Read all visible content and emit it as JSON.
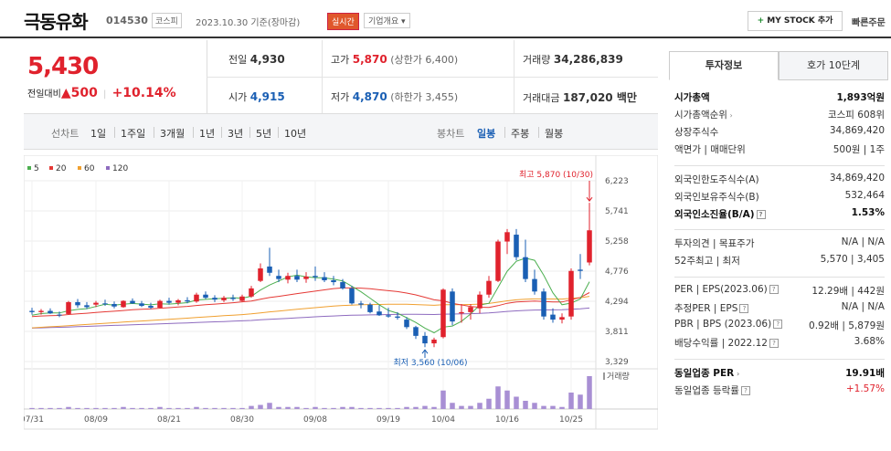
{
  "header": {
    "stock_name": "극동유화",
    "stock_code": "014530",
    "market": "코스피",
    "date_text": "2023.10.30 기준(장마감)",
    "live_badge": "실시간",
    "overview_label": "기업개요 ▾",
    "my_stock_button": "MY STOCK 추가",
    "my_stock_plus": "+",
    "quick_order": "빠른주문"
  },
  "price": {
    "current": "5,430",
    "change_label": "전일대비",
    "change_arrow": "▲",
    "change_amount": "500",
    "separator": "|",
    "change_rate": "+10.14%"
  },
  "quote": {
    "prev_close_label": "전일",
    "prev_close": "4,930",
    "high_label": "고가",
    "high": "5,870",
    "upper_limit": "(상한가 6,400)",
    "volume_label": "거래량",
    "volume": "34,286,839",
    "open_label": "시가",
    "open": "4,915",
    "low_label": "저가",
    "low": "4,870",
    "lower_limit": "(하한가 3,455)",
    "amount_label": "거래대금",
    "amount": "187,020 백만"
  },
  "period_tabs": {
    "line_chart_label": "선차트",
    "line_periods": [
      "1일",
      "1주일",
      "3개월",
      "1년",
      "3년",
      "5년",
      "10년"
    ],
    "candle_chart_label": "봉차트",
    "candle_periods": [
      "일봉",
      "주봉",
      "월봉"
    ],
    "active_candle": "일봉"
  },
  "colors": {
    "up": "#e0222d",
    "down": "#1a5fb4",
    "ma5": "#4caf50",
    "ma20": "#e53935",
    "ma60": "#f0a030",
    "ma120": "#8e6bbf",
    "volume": "#a88fd4"
  },
  "chart_data": {
    "type": "candlestick",
    "legend": [
      {
        "label": "5",
        "color": "#4caf50"
      },
      {
        "label": "20",
        "color": "#e53935"
      },
      {
        "label": "60",
        "color": "#f0a030"
      },
      {
        "label": "120",
        "color": "#8e6bbf"
      }
    ],
    "y_ticks": [
      "6,223",
      "5,741",
      "5,258",
      "4,776",
      "4,294",
      "3,811",
      "3,329"
    ],
    "ylim": [
      3329,
      6223
    ],
    "x_ticks": [
      "07/31",
      "08/09",
      "08/21",
      "08/30",
      "09/08",
      "09/19",
      "10/04",
      "10/16",
      "10/25"
    ],
    "max_annotation": "최고 5,870 (10/30)",
    "min_annotation": "최저 3,560 (10/06)",
    "volume_label": "거래량",
    "candles": [
      {
        "o": 4140,
        "h": 4190,
        "l": 4080,
        "c": 4120
      },
      {
        "o": 4120,
        "h": 4170,
        "l": 4080,
        "c": 4140
      },
      {
        "o": 4140,
        "h": 4180,
        "l": 4090,
        "c": 4100
      },
      {
        "o": 4080,
        "h": 4130,
        "l": 4040,
        "c": 4070
      },
      {
        "o": 4090,
        "h": 4300,
        "l": 4080,
        "c": 4280
      },
      {
        "o": 4280,
        "h": 4330,
        "l": 4190,
        "c": 4230
      },
      {
        "o": 4230,
        "h": 4280,
        "l": 4170,
        "c": 4200
      },
      {
        "o": 4240,
        "h": 4300,
        "l": 4200,
        "c": 4270
      },
      {
        "o": 4260,
        "h": 4320,
        "l": 4220,
        "c": 4250
      },
      {
        "o": 4250,
        "h": 4290,
        "l": 4180,
        "c": 4210
      },
      {
        "o": 4200,
        "h": 4310,
        "l": 4190,
        "c": 4300
      },
      {
        "o": 4300,
        "h": 4340,
        "l": 4250,
        "c": 4260
      },
      {
        "o": 4260,
        "h": 4300,
        "l": 4200,
        "c": 4220
      },
      {
        "o": 4220,
        "h": 4270,
        "l": 4170,
        "c": 4190
      },
      {
        "o": 4190,
        "h": 4320,
        "l": 4180,
        "c": 4300
      },
      {
        "o": 4300,
        "h": 4350,
        "l": 4240,
        "c": 4270
      },
      {
        "o": 4270,
        "h": 4330,
        "l": 4230,
        "c": 4310
      },
      {
        "o": 4310,
        "h": 4360,
        "l": 4260,
        "c": 4290
      },
      {
        "o": 4290,
        "h": 4430,
        "l": 4270,
        "c": 4400
      },
      {
        "o": 4400,
        "h": 4450,
        "l": 4330,
        "c": 4350
      },
      {
        "o": 4350,
        "h": 4390,
        "l": 4280,
        "c": 4320
      },
      {
        "o": 4310,
        "h": 4380,
        "l": 4280,
        "c": 4350
      },
      {
        "o": 4350,
        "h": 4400,
        "l": 4300,
        "c": 4330
      },
      {
        "o": 4300,
        "h": 4400,
        "l": 4290,
        "c": 4370
      },
      {
        "o": 4370,
        "h": 4540,
        "l": 4350,
        "c": 4500
      },
      {
        "o": 4620,
        "h": 4900,
        "l": 4600,
        "c": 4820
      },
      {
        "o": 4850,
        "h": 5150,
        "l": 4700,
        "c": 4750
      },
      {
        "o": 4700,
        "h": 4800,
        "l": 4600,
        "c": 4650
      },
      {
        "o": 4640,
        "h": 4750,
        "l": 4580,
        "c": 4700
      },
      {
        "o": 4700,
        "h": 4800,
        "l": 4600,
        "c": 4640
      },
      {
        "o": 4650,
        "h": 4760,
        "l": 4590,
        "c": 4690
      },
      {
        "o": 4700,
        "h": 4850,
        "l": 4620,
        "c": 4680
      },
      {
        "o": 4680,
        "h": 4760,
        "l": 4600,
        "c": 4630
      },
      {
        "o": 4630,
        "h": 4700,
        "l": 4550,
        "c": 4600
      },
      {
        "o": 4600,
        "h": 4650,
        "l": 4480,
        "c": 4500
      },
      {
        "o": 4500,
        "h": 4540,
        "l": 4240,
        "c": 4260
      },
      {
        "o": 4260,
        "h": 4300,
        "l": 4180,
        "c": 4240
      },
      {
        "o": 4240,
        "h": 4270,
        "l": 4100,
        "c": 4120
      },
      {
        "o": 4130,
        "h": 4230,
        "l": 4060,
        "c": 4070
      },
      {
        "o": 4070,
        "h": 4190,
        "l": 4030,
        "c": 4050
      },
      {
        "o": 4050,
        "h": 4120,
        "l": 4000,
        "c": 4030
      },
      {
        "o": 4000,
        "h": 4040,
        "l": 3850,
        "c": 3880
      },
      {
        "o": 3880,
        "h": 3900,
        "l": 3690,
        "c": 3740
      },
      {
        "o": 3740,
        "h": 3800,
        "l": 3560,
        "c": 3620
      },
      {
        "o": 3620,
        "h": 3710,
        "l": 3560,
        "c": 3680
      },
      {
        "o": 3720,
        "h": 4500,
        "l": 3700,
        "c": 4480
      },
      {
        "o": 4450,
        "h": 4500,
        "l": 3910,
        "c": 3970
      },
      {
        "o": 4100,
        "h": 4250,
        "l": 3950,
        "c": 4120
      },
      {
        "o": 4120,
        "h": 4250,
        "l": 4000,
        "c": 4200
      },
      {
        "o": 4180,
        "h": 4450,
        "l": 4100,
        "c": 4400
      },
      {
        "o": 4400,
        "h": 4700,
        "l": 4350,
        "c": 4620
      },
      {
        "o": 4620,
        "h": 5280,
        "l": 4600,
        "c": 5250
      },
      {
        "o": 5250,
        "h": 5450,
        "l": 5050,
        "c": 5400
      },
      {
        "o": 5360,
        "h": 5450,
        "l": 4950,
        "c": 5000
      },
      {
        "o": 5000,
        "h": 5280,
        "l": 4600,
        "c": 4650
      },
      {
        "o": 4650,
        "h": 4800,
        "l": 4400,
        "c": 4450
      },
      {
        "o": 4450,
        "h": 4500,
        "l": 4000,
        "c": 4050
      },
      {
        "o": 4080,
        "h": 4180,
        "l": 3950,
        "c": 4000
      },
      {
        "o": 4000,
        "h": 4100,
        "l": 3940,
        "c": 4040
      },
      {
        "o": 4050,
        "h": 4820,
        "l": 4000,
        "c": 4780
      },
      {
        "o": 4800,
        "h": 5050,
        "l": 4650,
        "c": 4780
      },
      {
        "o": 4915,
        "h": 5870,
        "l": 4870,
        "c": 5430
      }
    ],
    "volumes": [
      1,
      1,
      1,
      1,
      2,
      1,
      1,
      1,
      1,
      1,
      2,
      1,
      1,
      1,
      2,
      1,
      1,
      1,
      2,
      1,
      1,
      1,
      1,
      1,
      3,
      4,
      6,
      2,
      2,
      2,
      1,
      2,
      1,
      1,
      2,
      2,
      1,
      1,
      1,
      1,
      1,
      2,
      2,
      3,
      2,
      18,
      6,
      3,
      3,
      6,
      10,
      22,
      18,
      12,
      8,
      6,
      3,
      3,
      2,
      16,
      14,
      32
    ]
  },
  "right_panel": {
    "tab_active": "투자정보",
    "tab_other": "호가 10단계",
    "rows1": [
      {
        "k": "시가총액",
        "v": "1,893억원",
        "bold": true
      },
      {
        "k": "시가총액순위",
        "v": "코스피 608위",
        "arrow": true
      },
      {
        "k": "상장주식수",
        "v": "34,869,420"
      },
      {
        "k": "액면가 | 매매단위",
        "v": "500원 | 1주"
      }
    ],
    "rows2": [
      {
        "k": "외국인한도주식수(A)",
        "v": "34,869,420"
      },
      {
        "k": "외국인보유주식수(B)",
        "v": "532,464"
      },
      {
        "k": "외국인소진율(B/A)",
        "v": "1.53%",
        "bold": true,
        "q": true
      }
    ],
    "rows3": [
      {
        "k": "투자의견 | 목표주가",
        "v": "N/A | N/A"
      },
      {
        "k": "52주최고 | 최저",
        "v": "5,570 | 3,405"
      }
    ],
    "rows4": [
      {
        "k": "PER | EPS(2023.06)",
        "v": "12.29배 | 442원",
        "q": true
      },
      {
        "k": "추정PER | EPS",
        "v": "N/A | N/A",
        "q": true
      },
      {
        "k": "PBR | BPS (2023.06)",
        "v": "0.92배 | 5,879원",
        "q": true
      },
      {
        "k": "배당수익률 | 2022.12",
        "v": "3.68%",
        "q": true
      }
    ],
    "rows5": [
      {
        "k": "동일업종 PER",
        "v": "19.91배",
        "bold": true,
        "arrow": true
      },
      {
        "k": "동일업종 등락률",
        "v": "+1.57%",
        "red": true,
        "q": true
      }
    ]
  }
}
